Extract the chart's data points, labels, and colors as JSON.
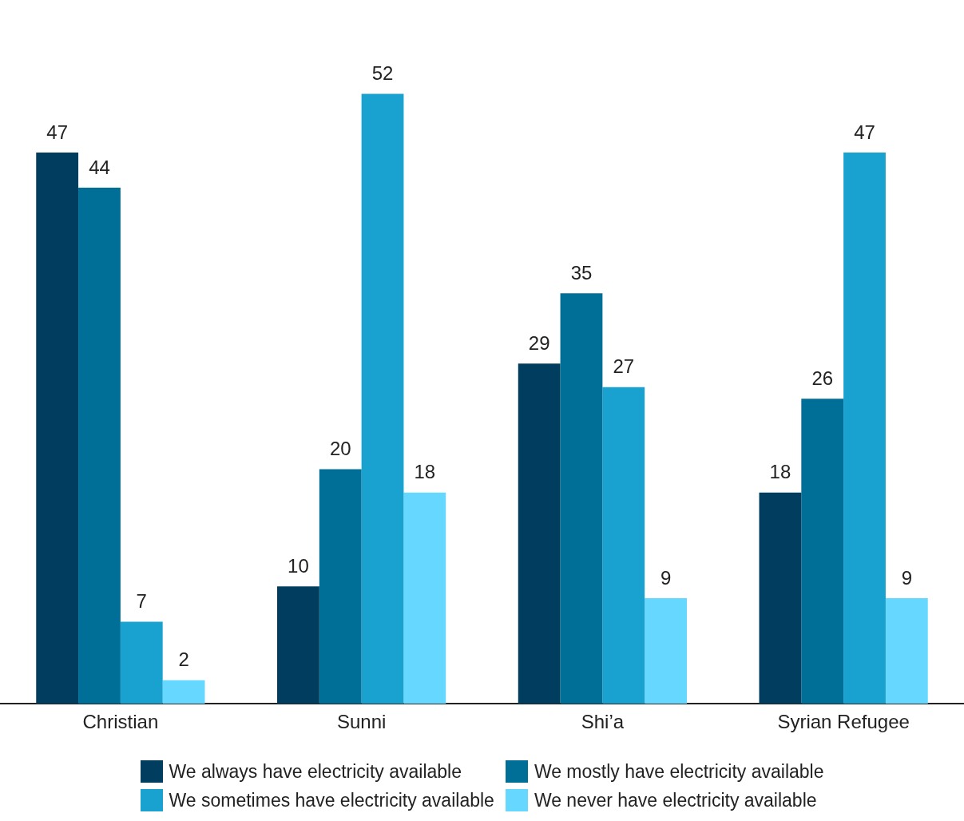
{
  "chart_data": {
    "type": "bar",
    "categories": [
      "Christian",
      "Sunni",
      "Shi’a",
      "Syrian Refugee"
    ],
    "series": [
      {
        "name": "We always have electricity available",
        "color": "#003d5e",
        "values": [
          47,
          10,
          29,
          18
        ]
      },
      {
        "name": "We mostly have electricity available",
        "color": "#006f98",
        "values": [
          44,
          20,
          35,
          26
        ]
      },
      {
        "name": "We sometimes have electricity available",
        "color": "#19a2cf",
        "values": [
          7,
          52,
          27,
          47
        ]
      },
      {
        "name": "We never have electricity available",
        "color": "#66d7ff",
        "values": [
          2,
          18,
          9,
          9
        ]
      }
    ],
    "data_labels": true,
    "legend": "bottom",
    "tick_labels": "x"
  }
}
